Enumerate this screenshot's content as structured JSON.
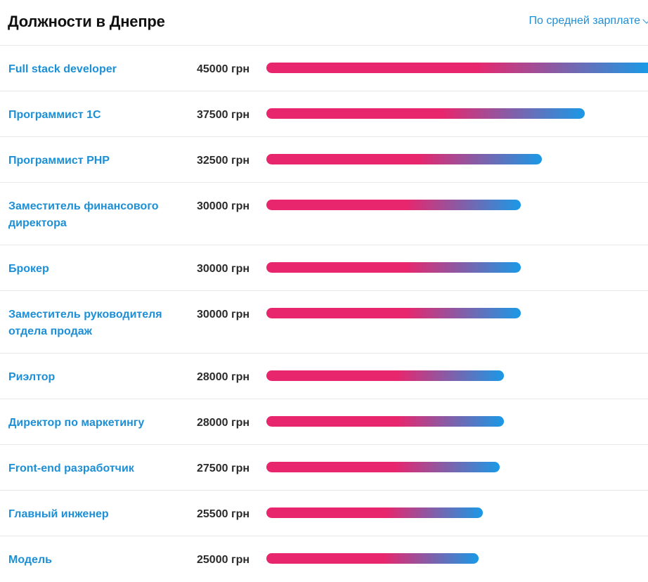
{
  "header": {
    "title": "Должности в Днепре",
    "sort_label": "По средней зарплате"
  },
  "currency": "грн",
  "colors": {
    "link": "#1c8fd6",
    "bar_start": "#e8266d",
    "bar_end": "#1a99e6"
  },
  "max_salary": 45000,
  "jobs": [
    {
      "title": "Full stack developer",
      "salary": 45000,
      "salary_label": "45000 грн"
    },
    {
      "title": "Программист 1С",
      "salary": 37500,
      "salary_label": "37500 грн"
    },
    {
      "title": "Программист PHP",
      "salary": 32500,
      "salary_label": "32500 грн"
    },
    {
      "title": "Заместитель финансового директора",
      "salary": 30000,
      "salary_label": "30000 грн"
    },
    {
      "title": "Брокер",
      "salary": 30000,
      "salary_label": "30000 грн"
    },
    {
      "title": "Заместитель руководителя отдела продаж",
      "salary": 30000,
      "salary_label": "30000 грн"
    },
    {
      "title": "Риэлтор",
      "salary": 28000,
      "salary_label": "28000 грн"
    },
    {
      "title": "Директор по маркетингу",
      "salary": 28000,
      "salary_label": "28000 грн"
    },
    {
      "title": "Front-end разработчик",
      "salary": 27500,
      "salary_label": "27500 грн"
    },
    {
      "title": "Главный инженер",
      "salary": 25500,
      "salary_label": "25500 грн"
    },
    {
      "title": "Модель",
      "salary": 25000,
      "salary_label": "25000 грн"
    }
  ]
}
